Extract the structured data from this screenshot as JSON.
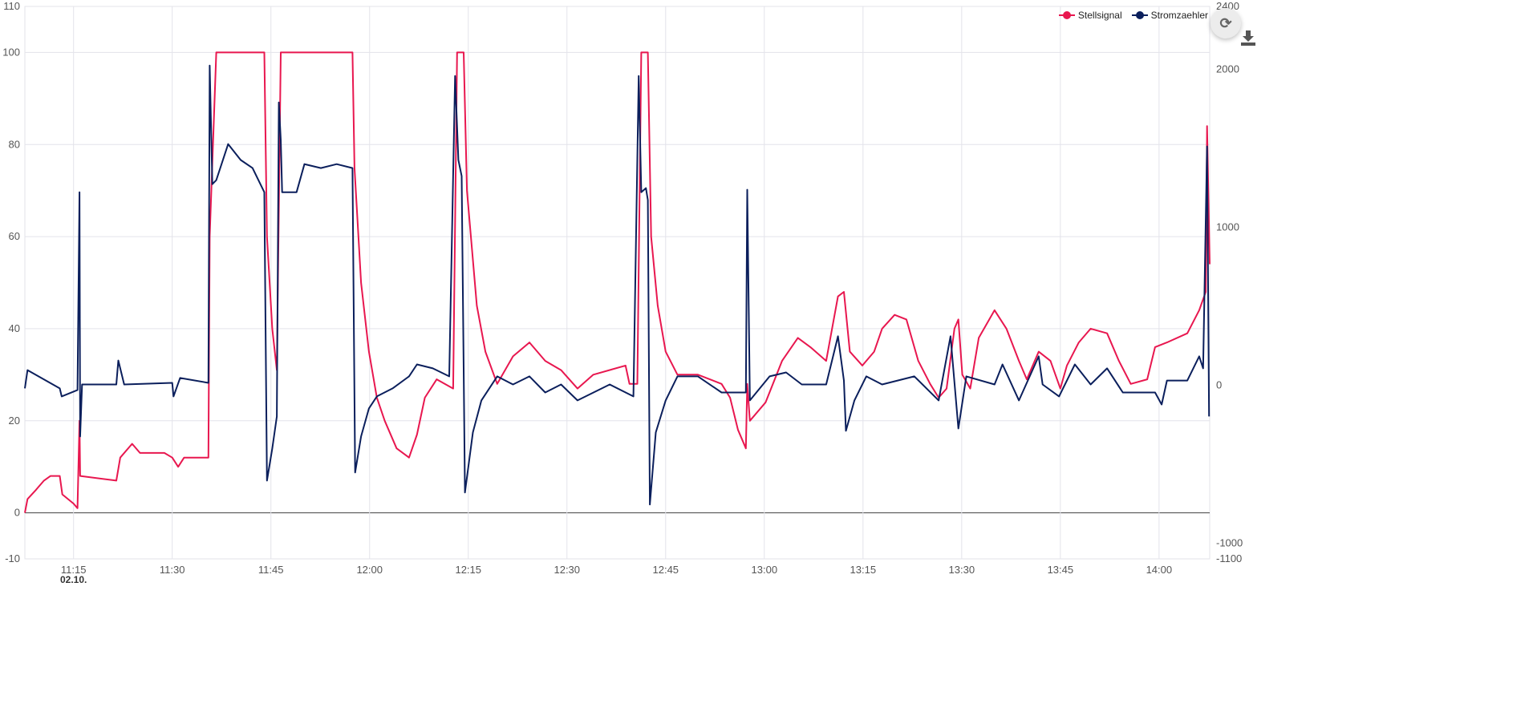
{
  "chart_data": {
    "type": "line",
    "title": "",
    "x_unit": "minutes after 11:00",
    "xlim": [
      7.6,
      187.7
    ],
    "x_ticks": [
      15,
      30,
      45,
      60,
      75,
      90,
      105,
      120,
      135,
      150,
      165,
      180
    ],
    "x_tick_labels": [
      "11:15",
      "11:30",
      "11:45",
      "12:00",
      "12:15",
      "12:30",
      "12:45",
      "13:00",
      "13:15",
      "13:30",
      "13:45",
      "14:00"
    ],
    "date_label": "02.10.",
    "y_left": {
      "lim": [
        -10,
        110
      ],
      "ticks": [
        -10,
        0,
        20,
        40,
        60,
        80,
        100,
        110
      ],
      "tick_labels": [
        "-10",
        "0",
        "20",
        "40",
        "60",
        "80",
        "100",
        "110"
      ]
    },
    "y_right": {
      "lim": [
        -1100,
        2400
      ],
      "ticks": [
        -1100,
        -1000,
        0,
        1000,
        2000,
        2400
      ],
      "tick_labels": [
        "-1100",
        "-1000",
        "0",
        "1000",
        "2000",
        "2400"
      ]
    },
    "grid": true,
    "legend_position": "top-right",
    "series": [
      {
        "name": "Stellsignal",
        "axis": "left",
        "color": "#e8174f",
        "points": [
          [
            7.6,
            0
          ],
          [
            8.0,
            3
          ],
          [
            9.3,
            5
          ],
          [
            10.5,
            7
          ],
          [
            11.5,
            8
          ],
          [
            12.9,
            8
          ],
          [
            13.3,
            4
          ],
          [
            15.0,
            2
          ],
          [
            15.6,
            1
          ],
          [
            15.9,
            20
          ],
          [
            16.0,
            8
          ],
          [
            21.5,
            7
          ],
          [
            22.1,
            12
          ],
          [
            23.9,
            15
          ],
          [
            25.1,
            13
          ],
          [
            28.8,
            13
          ],
          [
            30.0,
            12
          ],
          [
            30.9,
            10
          ],
          [
            31.8,
            12
          ],
          [
            35.5,
            12
          ],
          [
            35.7,
            60
          ],
          [
            36.7,
            100
          ],
          [
            44.0,
            100
          ],
          [
            44.4,
            60
          ],
          [
            45.2,
            40
          ],
          [
            45.9,
            31
          ],
          [
            46.5,
            100
          ],
          [
            57.4,
            100
          ],
          [
            57.7,
            75
          ],
          [
            58.7,
            50
          ],
          [
            59.9,
            35
          ],
          [
            61.1,
            25
          ],
          [
            62.3,
            20
          ],
          [
            64.1,
            14
          ],
          [
            66.0,
            12
          ],
          [
            67.2,
            17
          ],
          [
            68.4,
            25
          ],
          [
            70.2,
            29
          ],
          [
            72.7,
            27
          ],
          [
            73.3,
            100
          ],
          [
            74.3,
            100
          ],
          [
            74.8,
            70
          ],
          [
            76.3,
            45
          ],
          [
            77.6,
            35
          ],
          [
            79.4,
            28
          ],
          [
            81.8,
            34
          ],
          [
            84.3,
            37
          ],
          [
            86.7,
            33
          ],
          [
            89.1,
            31
          ],
          [
            91.6,
            27
          ],
          [
            94.0,
            30
          ],
          [
            98.9,
            32
          ],
          [
            99.5,
            28
          ],
          [
            100.7,
            28
          ],
          [
            101.3,
            100
          ],
          [
            102.3,
            100
          ],
          [
            102.8,
            60
          ],
          [
            103.8,
            45
          ],
          [
            105.0,
            35
          ],
          [
            106.8,
            30
          ],
          [
            109.9,
            30
          ],
          [
            113.5,
            28
          ],
          [
            114.8,
            25
          ],
          [
            116.0,
            18
          ],
          [
            117.2,
            14
          ],
          [
            117.4,
            28
          ],
          [
            117.8,
            20
          ],
          [
            120.2,
            24
          ],
          [
            122.7,
            33
          ],
          [
            125.1,
            38
          ],
          [
            127.0,
            36
          ],
          [
            129.4,
            33
          ],
          [
            131.2,
            47
          ],
          [
            132.1,
            48
          ],
          [
            133.0,
            35
          ],
          [
            134.9,
            32
          ],
          [
            136.7,
            35
          ],
          [
            137.9,
            40
          ],
          [
            139.8,
            43
          ],
          [
            141.6,
            42
          ],
          [
            143.4,
            33
          ],
          [
            145.2,
            28
          ],
          [
            146.5,
            25
          ],
          [
            147.7,
            27
          ],
          [
            148.9,
            40
          ],
          [
            149.5,
            42
          ],
          [
            150.1,
            30
          ],
          [
            151.3,
            27
          ],
          [
            152.6,
            38
          ],
          [
            155.0,
            44
          ],
          [
            156.8,
            40
          ],
          [
            158.7,
            33
          ],
          [
            159.9,
            29
          ],
          [
            161.7,
            35
          ],
          [
            163.5,
            33
          ],
          [
            165.0,
            27
          ],
          [
            166.0,
            32
          ],
          [
            167.8,
            37
          ],
          [
            169.6,
            40
          ],
          [
            172.1,
            39
          ],
          [
            173.9,
            33
          ],
          [
            175.7,
            28
          ],
          [
            178.2,
            29
          ],
          [
            179.4,
            36
          ],
          [
            181.2,
            37
          ],
          [
            184.3,
            39
          ],
          [
            186.1,
            44
          ],
          [
            187.1,
            48
          ],
          [
            187.3,
            84
          ],
          [
            187.7,
            54
          ]
        ]
      },
      {
        "name": "Stromzaehler",
        "axis": "right",
        "color": "#0b1f5c",
        "points": [
          [
            7.6,
            -20
          ],
          [
            8.0,
            96
          ],
          [
            12.9,
            -20
          ],
          [
            13.2,
            -71
          ],
          [
            15.6,
            -30
          ],
          [
            15.9,
            1223
          ],
          [
            16.0,
            -325
          ],
          [
            16.3,
            5
          ],
          [
            21.5,
            5
          ],
          [
            21.8,
            157
          ],
          [
            22.7,
            5
          ],
          [
            30.0,
            15
          ],
          [
            30.2,
            -71
          ],
          [
            31.2,
            46
          ],
          [
            35.5,
            15
          ],
          [
            35.7,
            2025
          ],
          [
            36.1,
            1274
          ],
          [
            36.7,
            1299
          ],
          [
            38.5,
            1528
          ],
          [
            40.4,
            1427
          ],
          [
            42.2,
            1376
          ],
          [
            44.0,
            1223
          ],
          [
            44.4,
            -604
          ],
          [
            45.2,
            -401
          ],
          [
            45.9,
            -198
          ],
          [
            46.2,
            1792
          ],
          [
            46.5,
            1553
          ],
          [
            46.7,
            1223
          ],
          [
            48.9,
            1223
          ],
          [
            50.1,
            1401
          ],
          [
            52.6,
            1376
          ],
          [
            55.0,
            1401
          ],
          [
            57.4,
            1376
          ],
          [
            57.8,
            -553
          ],
          [
            58.7,
            -325
          ],
          [
            59.9,
            -147
          ],
          [
            61.1,
            -71
          ],
          [
            63.5,
            -20
          ],
          [
            66.0,
            56
          ],
          [
            67.2,
            132
          ],
          [
            69.6,
            107
          ],
          [
            72.1,
            56
          ],
          [
            73.0,
            1959
          ],
          [
            73.5,
            1427
          ],
          [
            74.0,
            1325
          ],
          [
            74.5,
            -680
          ],
          [
            75.7,
            -299
          ],
          [
            77.0,
            -96
          ],
          [
            79.4,
            56
          ],
          [
            81.8,
            5
          ],
          [
            84.3,
            56
          ],
          [
            86.7,
            -46
          ],
          [
            89.1,
            5
          ],
          [
            91.6,
            -96
          ],
          [
            96.5,
            5
          ],
          [
            100.1,
            -71
          ],
          [
            100.9,
            1959
          ],
          [
            101.3,
            1223
          ],
          [
            102.0,
            1249
          ],
          [
            102.3,
            1173
          ],
          [
            102.6,
            -756
          ],
          [
            103.5,
            -299
          ],
          [
            105.0,
            -96
          ],
          [
            106.8,
            56
          ],
          [
            109.9,
            56
          ],
          [
            113.5,
            -46
          ],
          [
            117.2,
            -46
          ],
          [
            117.4,
            1239
          ],
          [
            117.8,
            -96
          ],
          [
            120.8,
            56
          ],
          [
            123.3,
            81
          ],
          [
            125.7,
            5
          ],
          [
            129.4,
            5
          ],
          [
            131.2,
            310
          ],
          [
            132.1,
            30
          ],
          [
            132.4,
            -289
          ],
          [
            133.7,
            -96
          ],
          [
            135.5,
            56
          ],
          [
            137.9,
            5
          ],
          [
            142.8,
            56
          ],
          [
            146.5,
            -96
          ],
          [
            148.3,
            310
          ],
          [
            149.5,
            -274
          ],
          [
            150.7,
            56
          ],
          [
            155.0,
            5
          ],
          [
            156.2,
            132
          ],
          [
            158.7,
            -96
          ],
          [
            161.7,
            183
          ],
          [
            162.3,
            5
          ],
          [
            164.8,
            -71
          ],
          [
            167.2,
            132
          ],
          [
            169.6,
            5
          ],
          [
            172.1,
            107
          ],
          [
            174.5,
            -46
          ],
          [
            179.4,
            -46
          ],
          [
            180.4,
            -122
          ],
          [
            181.2,
            30
          ],
          [
            184.3,
            30
          ],
          [
            186.1,
            183
          ],
          [
            186.7,
            107
          ],
          [
            187.3,
            1513
          ],
          [
            187.6,
            -198
          ]
        ]
      }
    ]
  },
  "toolbar": {
    "refresh_glyph": "⟳",
    "refresh_icon": "refresh-icon",
    "download_icon": "download-icon"
  }
}
